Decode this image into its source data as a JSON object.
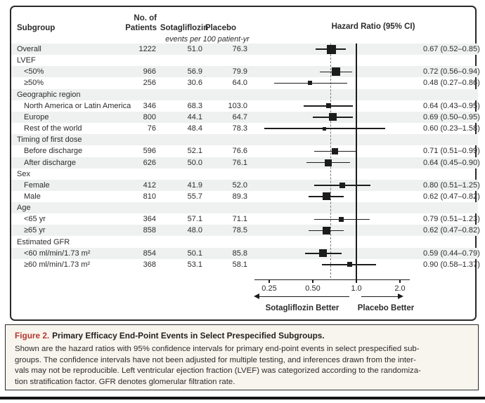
{
  "header": {
    "subgroup": "Subgroup",
    "patients_line1": "No. of",
    "patients_line2": "Patients",
    "sotagliflozin": "Sotagliflozin",
    "placebo": "Placebo",
    "events_note": "events per 100 patient-yr",
    "hazard_ratio": "Hazard Ratio (95% CI)"
  },
  "axis": {
    "ticks": [
      {
        "label": "0.25",
        "value": 0.25
      },
      {
        "label": "0.50",
        "value": 0.5
      },
      {
        "label": "1.0",
        "value": 1.0
      },
      {
        "label": "2.0",
        "value": 2.0
      }
    ],
    "left_arrow_label": "Sotagliflozin Better",
    "right_arrow_label": "Placebo Better"
  },
  "colors": {
    "stripe": "#eff1f1",
    "caption_bg": "#f8f5ee",
    "figure_label_red": "#b5372e",
    "ink": "#1c1c1c"
  },
  "chart_data": {
    "type": "scatter",
    "variant": "forest-plot",
    "x_scale": "log2",
    "x_ticks": [
      0.25,
      0.5,
      1.0,
      2.0
    ],
    "reference_line": 1.0,
    "overall_dashed_line": 0.67,
    "title": "Hazard Ratio (95% CI)",
    "rows": [
      {
        "label": "Overall",
        "indent": 0,
        "header": false,
        "shaded": true,
        "n": 1222,
        "sotagliflozin": "51.0",
        "placebo": "76.3",
        "hr": 0.67,
        "lo": 0.52,
        "hi": 0.85,
        "hr_text": "0.67 (0.52–0.85)"
      },
      {
        "label": "LVEF",
        "indent": 0,
        "header": true,
        "shaded": false
      },
      {
        "label": "<50%",
        "indent": 1,
        "header": false,
        "shaded": true,
        "n": 966,
        "sotagliflozin": "56.9",
        "placebo": "79.9",
        "hr": 0.72,
        "lo": 0.56,
        "hi": 0.94,
        "hr_text": "0.72 (0.56–0.94)"
      },
      {
        "label": "≥50%",
        "indent": 1,
        "header": false,
        "shaded": false,
        "n": 256,
        "sotagliflozin": "30.6",
        "placebo": "64.0",
        "hr": 0.48,
        "lo": 0.27,
        "hi": 0.86,
        "hr_text": "0.48 (0.27–0.86)"
      },
      {
        "label": "Geographic region",
        "indent": 0,
        "header": true,
        "shaded": true
      },
      {
        "label": "North America or Latin America",
        "indent": 1,
        "header": false,
        "shaded": false,
        "n": 346,
        "sotagliflozin": "68.3",
        "placebo": "103.0",
        "hr": 0.64,
        "lo": 0.43,
        "hi": 0.95,
        "hr_text": "0.64 (0.43–0.95)"
      },
      {
        "label": "Europe",
        "indent": 1,
        "header": false,
        "shaded": true,
        "n": 800,
        "sotagliflozin": "44.1",
        "placebo": "64.7",
        "hr": 0.69,
        "lo": 0.5,
        "hi": 0.95,
        "hr_text": "0.69 (0.50–0.95)"
      },
      {
        "label": "Rest of the world",
        "indent": 1,
        "header": false,
        "shaded": false,
        "n": 76,
        "sotagliflozin": "48.4",
        "placebo": "78.3",
        "hr": 0.6,
        "lo": 0.23,
        "hi": 1.58,
        "hr_text": "0.60 (0.23–1.58)"
      },
      {
        "label": "Timing of first dose",
        "indent": 0,
        "header": true,
        "shaded": true
      },
      {
        "label": "Before discharge",
        "indent": 1,
        "header": false,
        "shaded": false,
        "n": 596,
        "sotagliflozin": "52.1",
        "placebo": "76.6",
        "hr": 0.71,
        "lo": 0.51,
        "hi": 0.99,
        "hr_text": "0.71 (0.51–0.99)"
      },
      {
        "label": "After discharge",
        "indent": 1,
        "header": false,
        "shaded": true,
        "n": 626,
        "sotagliflozin": "50.0",
        "placebo": "76.1",
        "hr": 0.64,
        "lo": 0.45,
        "hi": 0.9,
        "hr_text": "0.64 (0.45–0.90)"
      },
      {
        "label": "Sex",
        "indent": 0,
        "header": true,
        "shaded": false
      },
      {
        "label": "Female",
        "indent": 1,
        "header": false,
        "shaded": true,
        "n": 412,
        "sotagliflozin": "41.9",
        "placebo": "52.0",
        "hr": 0.8,
        "lo": 0.51,
        "hi": 1.25,
        "hr_text": "0.80 (0.51–1.25)"
      },
      {
        "label": "Male",
        "indent": 1,
        "header": false,
        "shaded": false,
        "n": 810,
        "sotagliflozin": "55.7",
        "placebo": "89.3",
        "hr": 0.62,
        "lo": 0.47,
        "hi": 0.82,
        "hr_text": "0.62 (0.47–0.82)"
      },
      {
        "label": "Age",
        "indent": 0,
        "header": true,
        "shaded": true
      },
      {
        "label": "<65 yr",
        "indent": 1,
        "header": false,
        "shaded": false,
        "n": 364,
        "sotagliflozin": "57.1",
        "placebo": "71.1",
        "hr": 0.79,
        "lo": 0.51,
        "hi": 1.23,
        "hr_text": "0.79 (0.51–1.23)"
      },
      {
        "label": "≥65 yr",
        "indent": 1,
        "header": false,
        "shaded": true,
        "n": 858,
        "sotagliflozin": "48.0",
        "placebo": "78.5",
        "hr": 0.62,
        "lo": 0.47,
        "hi": 0.82,
        "hr_text": "0.62 (0.47–0.82)"
      },
      {
        "label": "Estimated GFR",
        "indent": 0,
        "header": true,
        "shaded": false
      },
      {
        "label": "<60 ml/min/1.73 m²",
        "indent": 1,
        "header": false,
        "shaded": true,
        "n": 854,
        "sotagliflozin": "50.1",
        "placebo": "85.8",
        "hr": 0.59,
        "lo": 0.44,
        "hi": 0.79,
        "hr_text": "0.59 (0.44–0.79)"
      },
      {
        "label": "≥60 ml/min/1.73 m²",
        "indent": 1,
        "header": false,
        "shaded": false,
        "n": 368,
        "sotagliflozin": "53.1",
        "placebo": "58.1",
        "hr": 0.9,
        "lo": 0.58,
        "hi": 1.37,
        "hr_text": "0.90 (0.58–1.37)"
      }
    ]
  },
  "caption": {
    "label": "Figure 2.",
    "title": "Primary Efficacy End-Point Events in Select Prespecified Subgroups.",
    "lines": [
      "Shown are the hazard ratios with 95% confidence intervals for primary end-point events in select prespecified sub-",
      "groups. The confidence intervals have not been adjusted for multiple testing, and inferences drawn from the inter-",
      "vals may not be reproducible. Left ventricular ejection fraction (LVEF) was categorized according to the randomiza-",
      "tion stratification factor. GFR denotes glomerular filtration rate."
    ]
  }
}
